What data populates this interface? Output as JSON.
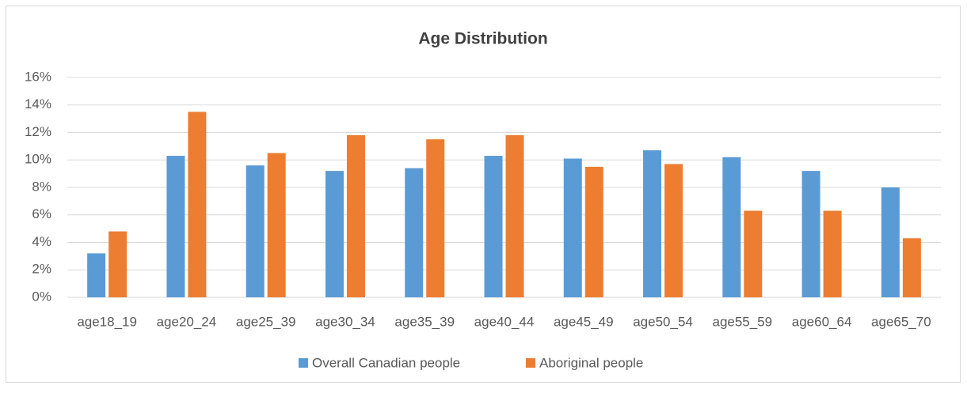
{
  "chart_data": {
    "type": "bar",
    "title": "Age Distribution",
    "categories": [
      "age18_19",
      "age20_24",
      "age25_39",
      "age30_34",
      "age35_39",
      "age40_44",
      "age45_49",
      "age50_54",
      "age55_59",
      "age60_64",
      "age65_70"
    ],
    "series": [
      {
        "name": "Overall Canadian people",
        "color": "#5b9bd5",
        "values": [
          3.2,
          10.3,
          9.6,
          9.2,
          9.4,
          10.3,
          10.1,
          10.7,
          10.2,
          9.2,
          8.0
        ]
      },
      {
        "name": "Aboriginal people",
        "color": "#ed7d31",
        "values": [
          4.8,
          13.5,
          10.5,
          11.8,
          11.5,
          11.8,
          9.5,
          9.7,
          6.3,
          6.3,
          4.3
        ]
      }
    ],
    "ylim": [
      0,
      16
    ],
    "yticks": [
      {
        "value": 0,
        "label": "0%"
      },
      {
        "value": 2,
        "label": "2%"
      },
      {
        "value": 4,
        "label": "4%"
      },
      {
        "value": 6,
        "label": "6%"
      },
      {
        "value": 8,
        "label": "8%"
      },
      {
        "value": 10,
        "label": "10%"
      },
      {
        "value": 12,
        "label": "12%"
      },
      {
        "value": 14,
        "label": "14%"
      },
      {
        "value": 16,
        "label": "16%"
      }
    ],
    "grid": true,
    "legend": "bottom"
  }
}
